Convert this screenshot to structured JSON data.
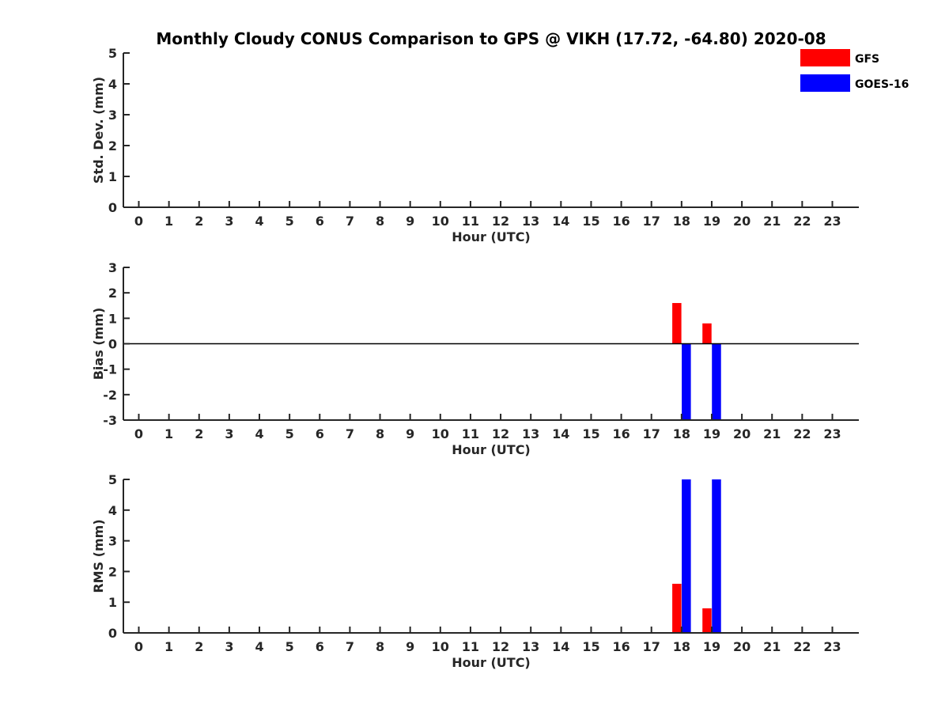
{
  "chart_data": {
    "type": "bar",
    "title": "Monthly Cloudy CONUS Comparison to GPS @ VIKH (17.72, -64.80) 2020-08",
    "legend": [
      {
        "name": "GFS",
        "color": "#ff0000"
      },
      {
        "name": "GOES-16",
        "color": "#0000ff"
      }
    ],
    "legend_position": "top-right",
    "categories": [
      "0",
      "1",
      "2",
      "3",
      "4",
      "5",
      "6",
      "7",
      "8",
      "9",
      "10",
      "11",
      "12",
      "13",
      "14",
      "15",
      "16",
      "17",
      "18",
      "19",
      "20",
      "21",
      "22",
      "23"
    ],
    "panels": [
      {
        "ylabel": "Std. Dev. (mm)",
        "xlabel": "Hour (UTC)",
        "ylim": [
          0,
          5
        ],
        "yticks": [
          "0",
          "1",
          "2",
          "3",
          "4",
          "5"
        ],
        "zero_line": false,
        "series": [
          {
            "name": "GFS",
            "values": [
              null,
              null,
              null,
              null,
              null,
              null,
              null,
              null,
              null,
              null,
              null,
              null,
              null,
              null,
              null,
              null,
              null,
              null,
              null,
              null,
              null,
              null,
              null,
              null
            ]
          },
          {
            "name": "GOES-16",
            "values": [
              null,
              null,
              null,
              null,
              null,
              null,
              null,
              null,
              null,
              null,
              null,
              null,
              null,
              null,
              null,
              null,
              null,
              null,
              null,
              null,
              null,
              null,
              null,
              null
            ]
          }
        ]
      },
      {
        "ylabel": "Bias (mm)",
        "xlabel": "Hour (UTC)",
        "ylim": [
          -3,
          3
        ],
        "yticks": [
          "-3",
          "-2",
          "-1",
          "0",
          "1",
          "2",
          "3"
        ],
        "zero_line": true,
        "series": [
          {
            "name": "GFS",
            "values": [
              null,
              null,
              null,
              null,
              null,
              null,
              null,
              null,
              null,
              null,
              null,
              null,
              null,
              null,
              null,
              null,
              null,
              null,
              1.6,
              0.8,
              null,
              null,
              null,
              null
            ]
          },
          {
            "name": "GOES-16",
            "values": [
              null,
              null,
              null,
              null,
              null,
              null,
              null,
              null,
              null,
              null,
              null,
              null,
              null,
              null,
              null,
              null,
              null,
              null,
              -3,
              -3,
              null,
              null,
              null,
              null
            ]
          }
        ]
      },
      {
        "ylabel": "RMS (mm)",
        "xlabel": "Hour (UTC)",
        "ylim": [
          0,
          5
        ],
        "yticks": [
          "0",
          "1",
          "2",
          "3",
          "4",
          "5"
        ],
        "zero_line": false,
        "series": [
          {
            "name": "GFS",
            "values": [
              null,
              null,
              null,
              null,
              null,
              null,
              null,
              null,
              null,
              null,
              null,
              null,
              null,
              null,
              null,
              null,
              null,
              null,
              1.6,
              0.8,
              null,
              null,
              null,
              null
            ]
          },
          {
            "name": "GOES-16",
            "values": [
              null,
              null,
              null,
              null,
              null,
              null,
              null,
              null,
              null,
              null,
              null,
              null,
              null,
              null,
              null,
              null,
              null,
              null,
              5,
              5,
              null,
              null,
              null,
              null
            ]
          }
        ]
      }
    ]
  }
}
